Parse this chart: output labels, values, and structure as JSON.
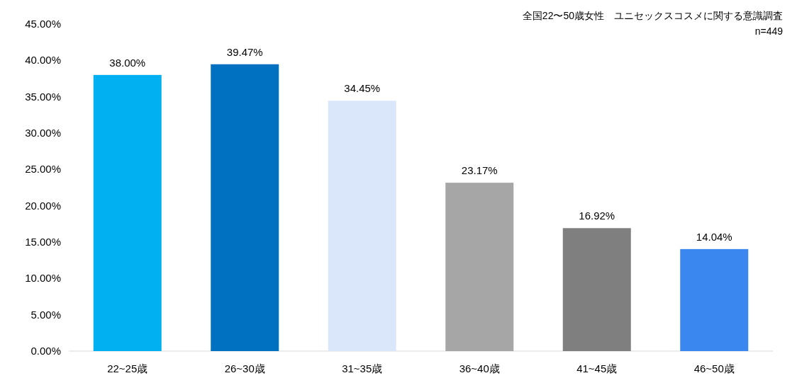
{
  "chart_data": {
    "type": "bar",
    "title": "全国22〜50歳女性　ユニセックスコスメに関する意識調査",
    "subtitle": "n=449",
    "categories": [
      "22~25歳",
      "26~30歳",
      "31~35歳",
      "36~40歳",
      "41~45歳",
      "46~50歳"
    ],
    "values": [
      38.0,
      39.47,
      34.45,
      23.17,
      16.92,
      14.04
    ],
    "colors": [
      "#00b0f0",
      "#0070c0",
      "#dae7fb",
      "#a6a6a6",
      "#7f7f7f",
      "#3b87f0"
    ],
    "value_labels": [
      "38.00%",
      "39.47%",
      "34.45%",
      "23.17%",
      "16.92%",
      "14.04%"
    ],
    "ylim": [
      0,
      45
    ],
    "yticks": [
      {
        "value": 0,
        "label": "0.00%"
      },
      {
        "value": 5,
        "label": "5.00%"
      },
      {
        "value": 10,
        "label": "10.00%"
      },
      {
        "value": 15,
        "label": "15.00%"
      },
      {
        "value": 20,
        "label": "20.00%"
      },
      {
        "value": 25,
        "label": "25.00%"
      },
      {
        "value": 30,
        "label": "30.00%"
      },
      {
        "value": 35,
        "label": "35.00%"
      },
      {
        "value": 40,
        "label": "40.00%"
      },
      {
        "value": 45,
        "label": "45.00%"
      }
    ],
    "grid": false
  }
}
